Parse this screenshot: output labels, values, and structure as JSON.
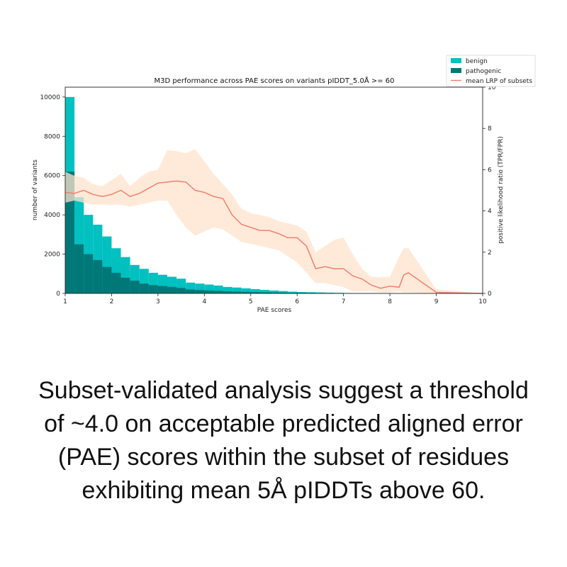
{
  "chart_data": {
    "type": "bar",
    "title": "M3D performance across PAE scores on variants pIDDT_5.0Å >= 60",
    "xlabel": "PAE scores",
    "ylabel": "number of variants",
    "y2label": "positive likelihood ratio (TPR/FPR)",
    "xlim": [
      1,
      10
    ],
    "ylim": [
      0,
      10500
    ],
    "y2lim": [
      0,
      10
    ],
    "x_ticks": [
      "1",
      "2",
      "3",
      "4",
      "5",
      "6",
      "7",
      "8",
      "9",
      "10"
    ],
    "y_ticks": [
      "0",
      "2000",
      "4000",
      "6000",
      "8000",
      "10000"
    ],
    "y2_ticks": [
      "0",
      "2",
      "4",
      "6",
      "8",
      "10"
    ],
    "bin_width": 0.2,
    "legend_position": "top-right, above axes",
    "series": [
      {
        "name": "benign",
        "kind": "bar",
        "color": "#00c0c0",
        "bin_starts": [
          1.0,
          1.2,
          1.4,
          1.6,
          1.8,
          2.0,
          2.2,
          2.4,
          2.6,
          2.8,
          3.0,
          3.2,
          3.4,
          3.6,
          3.8,
          4.0,
          4.2,
          4.4,
          4.6,
          4.8,
          5.0,
          5.2,
          5.4,
          5.6,
          5.8,
          6.0,
          6.2,
          6.4,
          6.6,
          6.8,
          7.0,
          7.2,
          7.4,
          7.6,
          7.8,
          8.0,
          8.2
        ],
        "values": [
          10000,
          4900,
          4000,
          3500,
          2900,
          2300,
          1850,
          1450,
          1250,
          1050,
          950,
          850,
          750,
          550,
          500,
          450,
          400,
          330,
          300,
          260,
          220,
          180,
          150,
          120,
          90,
          70,
          60,
          50,
          40,
          30,
          20,
          15,
          15,
          10,
          8,
          5,
          0
        ]
      },
      {
        "name": "pathogenic",
        "kind": "bar",
        "color": "#007878",
        "bin_starts": [
          1.0,
          1.2,
          1.4,
          1.6,
          1.8,
          2.0,
          2.2,
          2.4,
          2.6,
          2.8,
          3.0,
          3.2,
          3.4,
          3.6,
          3.8,
          4.0,
          4.2,
          4.4,
          4.6,
          4.8,
          5.0,
          5.2,
          5.4,
          5.6,
          5.8,
          6.0,
          6.2,
          6.4,
          6.6,
          6.8,
          7.0,
          7.2,
          7.4,
          7.6,
          7.8,
          8.0,
          8.2
        ],
        "values": [
          6200,
          2500,
          2000,
          1700,
          1350,
          1050,
          800,
          650,
          500,
          420,
          380,
          330,
          280,
          200,
          170,
          150,
          130,
          110,
          95,
          80,
          70,
          60,
          50,
          40,
          35,
          30,
          25,
          20,
          15,
          12,
          10,
          8,
          6,
          5,
          4,
          3,
          0
        ]
      },
      {
        "name": "mean LRP of subsets",
        "kind": "line",
        "axis": "right",
        "color": "#f08070",
        "band_color": "#ffe3cc",
        "x": [
          1.0,
          1.2,
          1.4,
          1.6,
          1.8,
          2.0,
          2.2,
          2.4,
          2.6,
          2.8,
          3.0,
          3.2,
          3.4,
          3.6,
          3.8,
          4.0,
          4.2,
          4.4,
          4.6,
          4.8,
          5.0,
          5.2,
          5.4,
          5.6,
          5.8,
          6.0,
          6.2,
          6.4,
          6.6,
          6.8,
          7.0,
          7.2,
          7.4,
          7.6,
          7.8,
          8.0,
          8.2,
          8.3,
          8.4,
          9.0,
          10.0
        ],
        "y": [
          4.9,
          4.85,
          5.0,
          4.8,
          4.7,
          4.8,
          5.0,
          4.7,
          4.85,
          5.1,
          5.35,
          5.4,
          5.45,
          5.4,
          5.0,
          4.9,
          4.7,
          4.6,
          3.8,
          3.35,
          3.2,
          3.05,
          3.05,
          2.9,
          2.7,
          2.7,
          2.3,
          1.2,
          1.3,
          1.2,
          1.2,
          0.85,
          0.7,
          0.4,
          0.25,
          0.35,
          0.3,
          0.9,
          1.0,
          0.05,
          0.0
        ],
        "band_upper": [
          5.9,
          5.7,
          5.6,
          5.3,
          5.2,
          5.5,
          5.8,
          5.2,
          5.6,
          5.9,
          6.0,
          6.95,
          6.9,
          6.8,
          7.0,
          6.4,
          5.8,
          5.3,
          4.8,
          4.1,
          3.9,
          3.8,
          3.7,
          3.5,
          3.4,
          3.3,
          3.0,
          2.0,
          2.3,
          2.6,
          2.7,
          1.9,
          1.2,
          0.8,
          0.8,
          0.8,
          1.8,
          2.2,
          2.2,
          0.2,
          0.0
        ],
        "band_lower": [
          4.4,
          4.5,
          4.4,
          4.3,
          4.3,
          4.3,
          4.3,
          4.2,
          4.3,
          4.4,
          4.5,
          4.5,
          3.8,
          3.2,
          2.8,
          3.0,
          3.2,
          3.1,
          2.8,
          2.5,
          2.4,
          2.3,
          2.2,
          2.1,
          1.8,
          1.5,
          1.0,
          0.5,
          0.5,
          0.4,
          0.3,
          0.1,
          0.1,
          0.1,
          0.05,
          0.05,
          0.1,
          0.05,
          0.05,
          0.0,
          0.0
        ]
      }
    ]
  },
  "caption": "Subset-validated analysis suggest a threshold of ~4.0 on acceptable predicted aligned error (PAE) scores within the subset of residues exhibiting mean 5Å pIDDTs above 60."
}
